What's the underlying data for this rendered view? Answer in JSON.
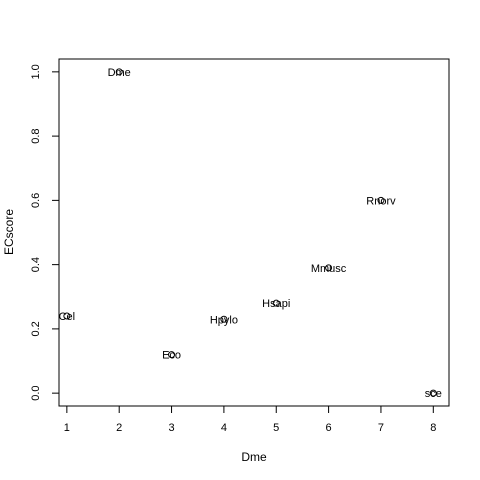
{
  "chart_data": {
    "type": "scatter",
    "title": "",
    "xlabel": "Dme",
    "ylabel": "ECscore",
    "xlim": [
      0.85,
      8.3
    ],
    "ylim": [
      -0.04,
      1.04
    ],
    "x_ticks": [
      1,
      2,
      3,
      4,
      5,
      6,
      7,
      8
    ],
    "y_ticks": [
      0.0,
      0.2,
      0.4,
      0.6,
      0.8,
      1.0
    ],
    "y_tick_labels": [
      "0.0",
      "0.2",
      "0.4",
      "0.6",
      "0.8",
      "1.0"
    ],
    "grid": false,
    "point_marker": "o",
    "points": [
      {
        "x": 1,
        "y": 0.24,
        "label": "Cel"
      },
      {
        "x": 2,
        "y": 1.0,
        "label": "Dme"
      },
      {
        "x": 3,
        "y": 0.12,
        "label": "Eco"
      },
      {
        "x": 4,
        "y": 0.23,
        "label": "Hpylo"
      },
      {
        "x": 5,
        "y": 0.28,
        "label": "Hsapi"
      },
      {
        "x": 6,
        "y": 0.39,
        "label": "Mmusc"
      },
      {
        "x": 7,
        "y": 0.6,
        "label": "Rnorv"
      },
      {
        "x": 8,
        "y": 0.0,
        "label": "sce"
      }
    ]
  }
}
